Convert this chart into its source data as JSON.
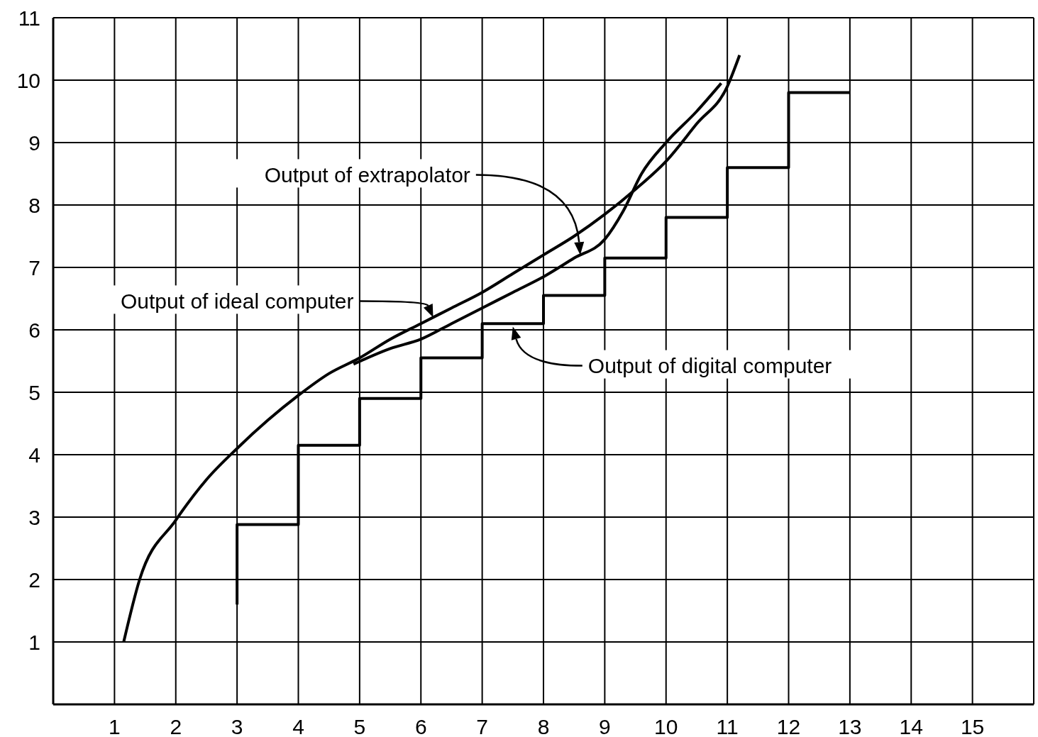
{
  "chart_data": {
    "type": "line",
    "xlim": [
      0,
      16
    ],
    "ylim": [
      0,
      11
    ],
    "xticks": [
      1,
      2,
      3,
      4,
      5,
      6,
      7,
      8,
      9,
      10,
      11,
      12,
      13,
      14,
      15
    ],
    "yticks": [
      1,
      2,
      3,
      4,
      5,
      6,
      7,
      8,
      9,
      10,
      11
    ],
    "grid": true,
    "marker": "none",
    "line_style": "solid",
    "series": [
      {
        "type": "line",
        "color": "#000000",
        "x": [
          1.15,
          1.41,
          2,
          2.5,
          3,
          3.5,
          4,
          4.5,
          5,
          5.5,
          6,
          6.5,
          7,
          7.5,
          8,
          8.5,
          9,
          9.5,
          10,
          10.5,
          11,
          11.2
        ],
        "values": [
          1,
          2,
          2.95,
          3.6,
          4.1,
          4.55,
          4.95,
          5.3,
          5.55,
          5.85,
          6.1,
          6.35,
          6.6,
          6.9,
          7.2,
          7.5,
          7.85,
          8.25,
          8.7,
          9.3,
          9.9,
          10.4
        ]
      },
      {
        "type": "line",
        "color": "#000000",
        "x": [
          4.9,
          5.5,
          6,
          6.5,
          7,
          7.5,
          8,
          8.5,
          9,
          9.3,
          9.6,
          10,
          10.5,
          10.9
        ],
        "values": [
          5.45,
          5.7,
          5.85,
          6.1,
          6.35,
          6.6,
          6.85,
          7.15,
          7.45,
          7.9,
          8.5,
          9.0,
          9.5,
          9.95
        ]
      },
      {
        "type": "step",
        "color": "#000000",
        "x": [
          3,
          3,
          4,
          5,
          6,
          7,
          8,
          9,
          10,
          11,
          12,
          13
        ],
        "values": [
          1.6,
          2.88,
          4.15,
          4.9,
          5.55,
          6.1,
          6.55,
          7.15,
          7.8,
          8.6,
          9.8,
          9.8
        ]
      }
    ],
    "annotations": [
      "Output of extrapolator",
      "Output of ideal computer",
      "Output of digital computer"
    ]
  }
}
